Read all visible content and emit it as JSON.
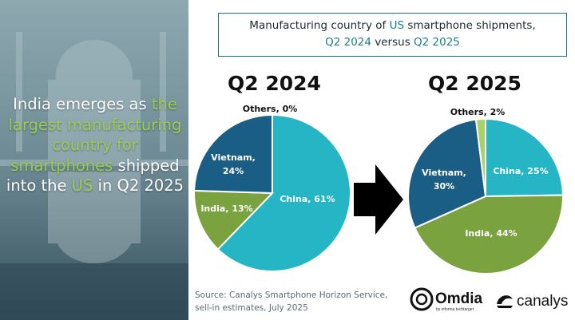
{
  "headline": {
    "part1": "India emerges as ",
    "part2": "the largest manufacturing country for smartphones",
    "part3": " shipped into the ",
    "part4": "US",
    "part5": " in Q2 2025"
  },
  "title": {
    "line1_a": "Manufacturing country of ",
    "line1_hl": "US",
    "line1_b": " smartphone shipments,",
    "line2_a": "Q2 2024",
    "line2_b": " versus ",
    "line2_c": "Q2 2025"
  },
  "colors": {
    "china": "#25b5c5",
    "india": "#7aa23f",
    "vietnam": "#1b5e85",
    "others": "#a8d26a",
    "title_border": "#1f6f74",
    "headline_green": "#9ccc54"
  },
  "chart_data": [
    {
      "type": "pie",
      "title": "Q2 2024",
      "slices": [
        {
          "label": "China",
          "value": 61,
          "text": "China, 61%"
        },
        {
          "label": "India",
          "value": 13,
          "text": "India, 13%"
        },
        {
          "label": "Vietnam",
          "value": 24,
          "text": "Vietnam, 24%"
        },
        {
          "label": "Others",
          "value": 0,
          "text": "Others, 0%"
        }
      ]
    },
    {
      "type": "pie",
      "title": "Q2 2025",
      "slices": [
        {
          "label": "China",
          "value": 25,
          "text": "China, 25%"
        },
        {
          "label": "India",
          "value": 44,
          "text": "India, 44%"
        },
        {
          "label": "Vietnam",
          "value": 30,
          "text": "Vietnam, 30%"
        },
        {
          "label": "Others",
          "value": 2,
          "text": "Others, 2%"
        }
      ]
    }
  ],
  "source": {
    "line1": "Source: Canalys Smartphone Horizon Service,",
    "line2": "sell-in estimates, July 2025"
  },
  "logos": {
    "omdia": "Omdia",
    "omdia_sub": "by informa techtarget",
    "canalys": "canalys"
  }
}
